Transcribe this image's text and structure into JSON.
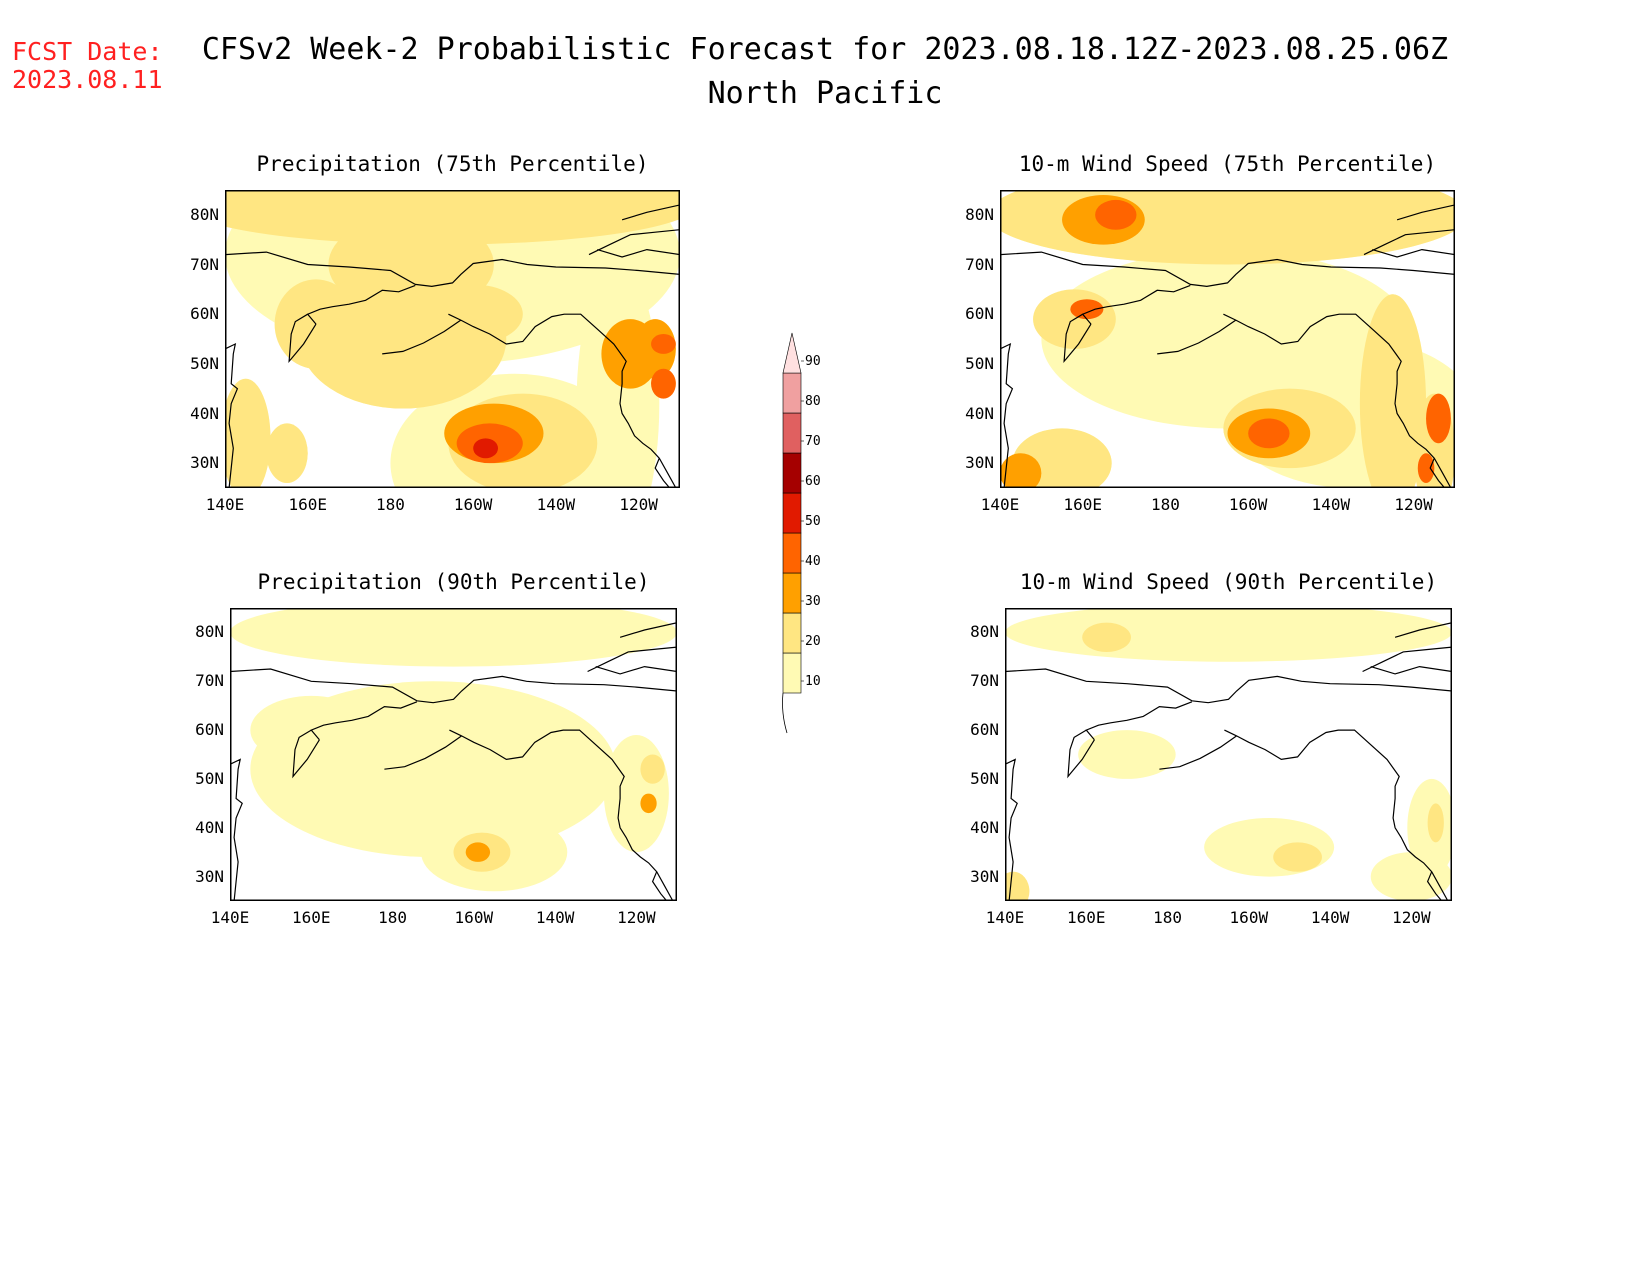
{
  "header": {
    "fcst_label": "FCST Date:",
    "fcst_date": "2023.08.11",
    "title": "CFSv2 Week-2 Probabilistic Forecast for 2023.08.18.12Z-2023.08.25.06Z",
    "subtitle": "North Pacific"
  },
  "axes": {
    "lat_ticks": [
      "80N",
      "70N",
      "60N",
      "50N",
      "40N",
      "30N"
    ],
    "lon_ticks": [
      "140E",
      "160E",
      "180",
      "160W",
      "140W",
      "120W"
    ]
  },
  "panels": [
    {
      "title": "Precipitation (75th Percentile)",
      "variable": "precipitation",
      "percentile": 75
    },
    {
      "title": "10-m Wind Speed (75th Percentile)",
      "variable": "wind",
      "percentile": 75
    },
    {
      "title": "Precipitation (90th Percentile)",
      "variable": "precipitation",
      "percentile": 90
    },
    {
      "title": "10-m Wind Speed (90th Percentile)",
      "variable": "wind",
      "percentile": 90
    }
  ],
  "colorbar": {
    "labels": [
      "10",
      "20",
      "30",
      "40",
      "50",
      "60",
      "70",
      "80",
      "90"
    ],
    "colors": [
      "#fffab4",
      "#ffe682",
      "#ffa000",
      "#ff6400",
      "#e11a00",
      "#a50000",
      "#e06060",
      "#f0a0a0",
      "#ffe0e0"
    ]
  }
}
